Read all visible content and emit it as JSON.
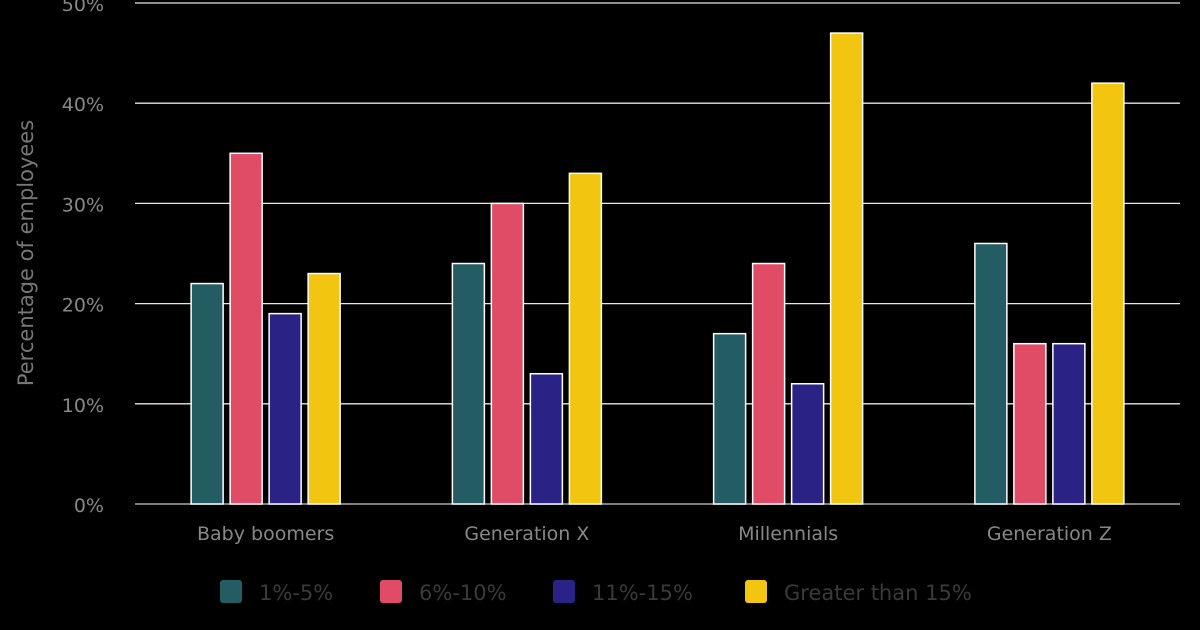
{
  "chart_data": {
    "type": "bar",
    "title": "",
    "xlabel": "",
    "ylabel": "Percentage of employees",
    "ylim": [
      0,
      50
    ],
    "yticks": [
      "0%",
      "10%",
      "20%",
      "30%",
      "40%",
      "50%"
    ],
    "grid": true,
    "legend_position": "bottom",
    "categories": [
      "Baby boomers",
      "Generation X",
      "Millennials",
      "Generation Z"
    ],
    "series": [
      {
        "name": "1%-5%",
        "color": "#245c63",
        "values": [
          22,
          24,
          17,
          26
        ]
      },
      {
        "name": "6%-10%",
        "color": "#e04c65",
        "values": [
          35,
          30,
          24,
          16
        ]
      },
      {
        "name": "11%-15%",
        "color": "#2a2385",
        "values": [
          19,
          13,
          12,
          16
        ]
      },
      {
        "name": "Greater than 15%",
        "color": "#f2c511",
        "values": [
          23,
          33,
          47,
          42
        ]
      }
    ]
  }
}
